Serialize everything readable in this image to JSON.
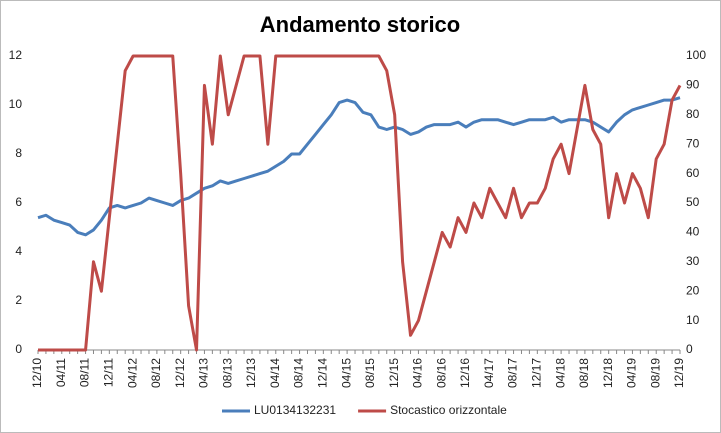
{
  "chart_data": {
    "type": "line",
    "title": "Andamento storico",
    "categories": [
      "12/10",
      null,
      null,
      "04/11",
      null,
      null,
      "08/11",
      null,
      null,
      "12/11",
      null,
      null,
      "04/12",
      null,
      null,
      "08/12",
      null,
      null,
      "12/12",
      null,
      null,
      "04/13",
      null,
      null,
      "08/13",
      null,
      null,
      "12/13",
      null,
      null,
      "04/14",
      null,
      null,
      "08/14",
      null,
      null,
      "12/14",
      null,
      null,
      "04/15",
      null,
      null,
      "08/15",
      null,
      null,
      "12/15",
      null,
      null,
      "04/16",
      null,
      null,
      "08/16",
      null,
      null,
      "12/16",
      null,
      null,
      "04/17",
      null,
      null,
      "08/17",
      null,
      null,
      "12/17",
      null,
      null,
      "04/18",
      null,
      null,
      "08/18",
      null,
      null,
      "12/18",
      null,
      null,
      "04/19",
      null,
      null,
      "08/19",
      null,
      null,
      "12/19"
    ],
    "series": [
      {
        "name": "LU0134132231",
        "color": "#4a7ebb",
        "values": [
          5.4,
          5.5,
          5.3,
          5.2,
          5.1,
          4.8,
          4.7,
          4.9,
          5.3,
          5.8,
          5.9,
          5.8,
          5.9,
          6.0,
          6.2,
          6.1,
          6.0,
          5.9,
          6.1,
          6.2,
          6.4,
          6.6,
          6.7,
          6.9,
          6.8,
          6.9,
          7.0,
          7.1,
          7.2,
          7.3,
          7.5,
          7.7,
          8.0,
          8.0,
          8.4,
          8.8,
          9.2,
          9.6,
          10.1,
          10.2,
          10.1,
          9.7,
          9.6,
          9.1,
          9.0,
          9.1,
          9.0,
          8.8,
          8.9,
          9.1,
          9.2,
          9.2,
          9.2,
          9.3,
          9.1,
          9.3,
          9.4,
          9.4,
          9.4,
          9.3,
          9.2,
          9.3,
          9.4,
          9.4,
          9.4,
          9.5,
          9.3,
          9.4,
          9.4,
          9.4,
          9.3,
          9.1,
          8.9,
          9.3,
          9.6,
          9.8,
          9.9,
          10.0,
          10.1,
          10.2,
          10.2,
          10.3
        ]
      },
      {
        "name": "Stocastico orizzontale",
        "color": "#be4b48",
        "axis": "y2",
        "values": [
          0,
          0,
          0,
          0,
          0,
          0,
          0,
          30,
          20,
          45,
          70,
          95,
          100,
          100,
          100,
          100,
          100,
          100,
          60,
          15,
          0,
          90,
          70,
          100,
          80,
          90,
          100,
          100,
          100,
          70,
          100,
          100,
          100,
          100,
          100,
          100,
          100,
          100,
          100,
          100,
          100,
          100,
          100,
          100,
          95,
          80,
          30,
          5,
          10,
          20,
          30,
          40,
          35,
          45,
          40,
          50,
          45,
          55,
          50,
          45,
          55,
          45,
          50,
          50,
          55,
          65,
          70,
          60,
          75,
          90,
          75,
          70,
          45,
          60,
          50,
          60,
          55,
          45,
          65,
          70,
          85,
          90
        ]
      }
    ],
    "ylim": [
      0,
      12
    ],
    "yticks": [
      0,
      2,
      4,
      6,
      8,
      10,
      12
    ],
    "y2lim": [
      0,
      100
    ],
    "y2ticks": [
      0,
      10,
      20,
      30,
      40,
      50,
      60,
      70,
      80,
      90,
      100
    ],
    "grid": false,
    "legend": "bottom"
  }
}
